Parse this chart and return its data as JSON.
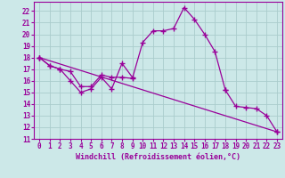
{
  "xlabel": "Windchill (Refroidissement éolien,°C)",
  "bg_color": "#cce8e8",
  "line_color": "#990099",
  "grid_color": "#aacccc",
  "xlim": [
    -0.5,
    23.5
  ],
  "ylim": [
    11,
    22.8
  ],
  "xticks": [
    0,
    1,
    2,
    3,
    4,
    5,
    6,
    7,
    8,
    9,
    10,
    11,
    12,
    13,
    14,
    15,
    16,
    17,
    18,
    19,
    20,
    21,
    22,
    23
  ],
  "yticks": [
    11,
    12,
    13,
    14,
    15,
    16,
    17,
    18,
    19,
    20,
    21,
    22
  ],
  "line1_x": [
    0,
    1,
    2,
    3,
    4,
    5,
    6,
    7,
    8,
    9
  ],
  "line1_y": [
    18.0,
    17.3,
    17.0,
    16.0,
    15.0,
    15.3,
    16.3,
    15.3,
    17.5,
    16.3
  ],
  "line2_x": [
    0,
    1,
    2,
    3,
    4,
    5,
    6,
    7,
    8,
    9,
    10,
    11,
    12,
    13,
    14,
    15,
    16,
    17,
    18
  ],
  "line2_y": [
    18.0,
    17.3,
    17.0,
    16.8,
    15.5,
    15.5,
    16.5,
    16.3,
    16.3,
    16.2,
    19.3,
    20.3,
    20.3,
    20.5,
    22.3,
    21.3,
    20.0,
    18.5,
    15.2
  ],
  "line3_x": [
    0,
    23
  ],
  "line3_y": [
    18.0,
    11.6
  ],
  "line4_x": [
    18,
    19,
    20,
    21,
    22,
    23
  ],
  "line4_y": [
    15.2,
    13.8,
    13.7,
    13.6,
    13.0,
    11.6
  ]
}
